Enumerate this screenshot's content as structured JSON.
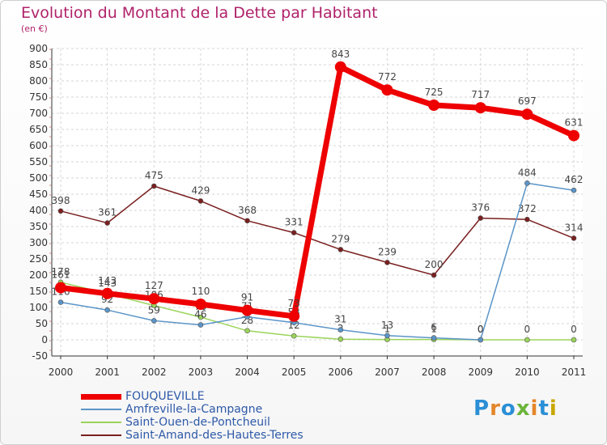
{
  "title": "Evolution du Montant de la Dette par Habitant",
  "subtitle": "(en €)",
  "logo": {
    "text": "Proxiti",
    "colors": [
      "#2a8fd6",
      "#e4862a",
      "#2a8fd6",
      "#6bb53a",
      "#e4862a",
      "#2a8fd6",
      "#c8a700"
    ]
  },
  "chart_data": {
    "type": "line",
    "x": [
      "2000",
      "2001",
      "2002",
      "2003",
      "2004",
      "2005",
      "2006",
      "2007",
      "2008",
      "2009",
      "2010",
      "2011"
    ],
    "ylim": [
      -50,
      900
    ],
    "yticks": [
      -50,
      0,
      50,
      100,
      150,
      200,
      250,
      300,
      350,
      400,
      450,
      500,
      550,
      600,
      650,
      700,
      750,
      800,
      850,
      900
    ],
    "grid": true,
    "legend_position": "bottom-left",
    "series": [
      {
        "name": "Saint-Amand-des-Hautes-Terres",
        "color": "#7a1f1f",
        "width": 1.5,
        "r": 3,
        "values": [
          398,
          361,
          475,
          429,
          368,
          331,
          279,
          239,
          200,
          376,
          372,
          314
        ],
        "labels": [
          "398",
          "361",
          "475",
          "429",
          "368",
          "331",
          "279",
          "239",
          "200",
          "376",
          "372",
          "314"
        ]
      },
      {
        "name": "Saint-Ouen-de-Pontcheuil",
        "color": "#9bd45a",
        "width": 1.5,
        "r": 3,
        "values": [
          178,
          143,
          106,
          70,
          28,
          12,
          2,
          1,
          1,
          0,
          0,
          0
        ],
        "labels": [
          "178",
          "143",
          "106",
          "70",
          "28",
          "12",
          "2",
          "1",
          "1",
          "0",
          "0",
          "0"
        ]
      },
      {
        "name": "Amfreville-la-Campagne",
        "color": "#5b95c8",
        "width": 1.5,
        "r": 3,
        "values": [
          116,
          92,
          59,
          46,
          71,
          53,
          31,
          13,
          6,
          0,
          484,
          462
        ],
        "labels": [
          "116",
          "92",
          "59",
          "46",
          "71",
          "53",
          "31",
          "13",
          "6",
          "0",
          "484",
          "462"
        ]
      },
      {
        "name": "FOUQUEVILLE",
        "color": "#ee0000",
        "width": 7,
        "r": 7,
        "values": [
          161,
          143,
          127,
          110,
          91,
          73,
          843,
          772,
          725,
          717,
          697,
          631
        ],
        "labels": [
          "161",
          "143",
          "127",
          "110",
          "91",
          "73",
          "843",
          "772",
          "725",
          "717",
          "697",
          "631"
        ]
      }
    ]
  },
  "legend": [
    {
      "label": "FOUQUEVILLE",
      "color": "#ee0000",
      "thick": 7
    },
    {
      "label": "Amfreville-la-Campagne",
      "color": "#5b95c8",
      "thick": 2
    },
    {
      "label": "Saint-Ouen-de-Pontcheuil",
      "color": "#9bd45a",
      "thick": 2
    },
    {
      "label": "Saint-Amand-des-Hautes-Terres",
      "color": "#7a1f1f",
      "thick": 2
    }
  ]
}
